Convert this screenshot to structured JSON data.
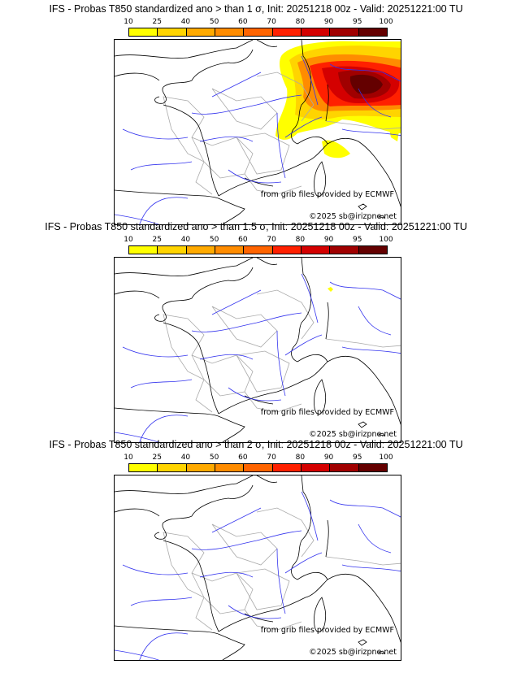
{
  "colorbar": {
    "ticks": [
      "10",
      "25",
      "40",
      "50",
      "60",
      "70",
      "80",
      "90",
      "95",
      "100"
    ],
    "colors": [
      "#ffff00",
      "#ffd400",
      "#ffaa00",
      "#ff8c00",
      "#ff6400",
      "#ff2000",
      "#d40000",
      "#a00000",
      "#640000"
    ]
  },
  "panels": [
    {
      "title": "IFS - Probas T850  standardized ano > than 1 σ, Init: 20251218 00z - Valid: 20251221:00 TU",
      "source": "from grib files provided by ECMWF",
      "copyright": "©2025 sb@irizpne.net"
    },
    {
      "title": "IFS - Probas T850  standardized ano > than 1.5 σ, Init: 20251218 00z - Valid: 20251221:00 TU",
      "source": "from grib files provided by ECMWF",
      "copyright": "©2025 sb@irizpne.net"
    },
    {
      "title": "IFS - Probas T850  standardized ano > than 2 σ, Init: 20251218 00z - Valid: 20251221:00 TU",
      "source": "from grib files provided by ECMWF",
      "copyright": "©2025 sb@irizpne.net"
    }
  ]
}
